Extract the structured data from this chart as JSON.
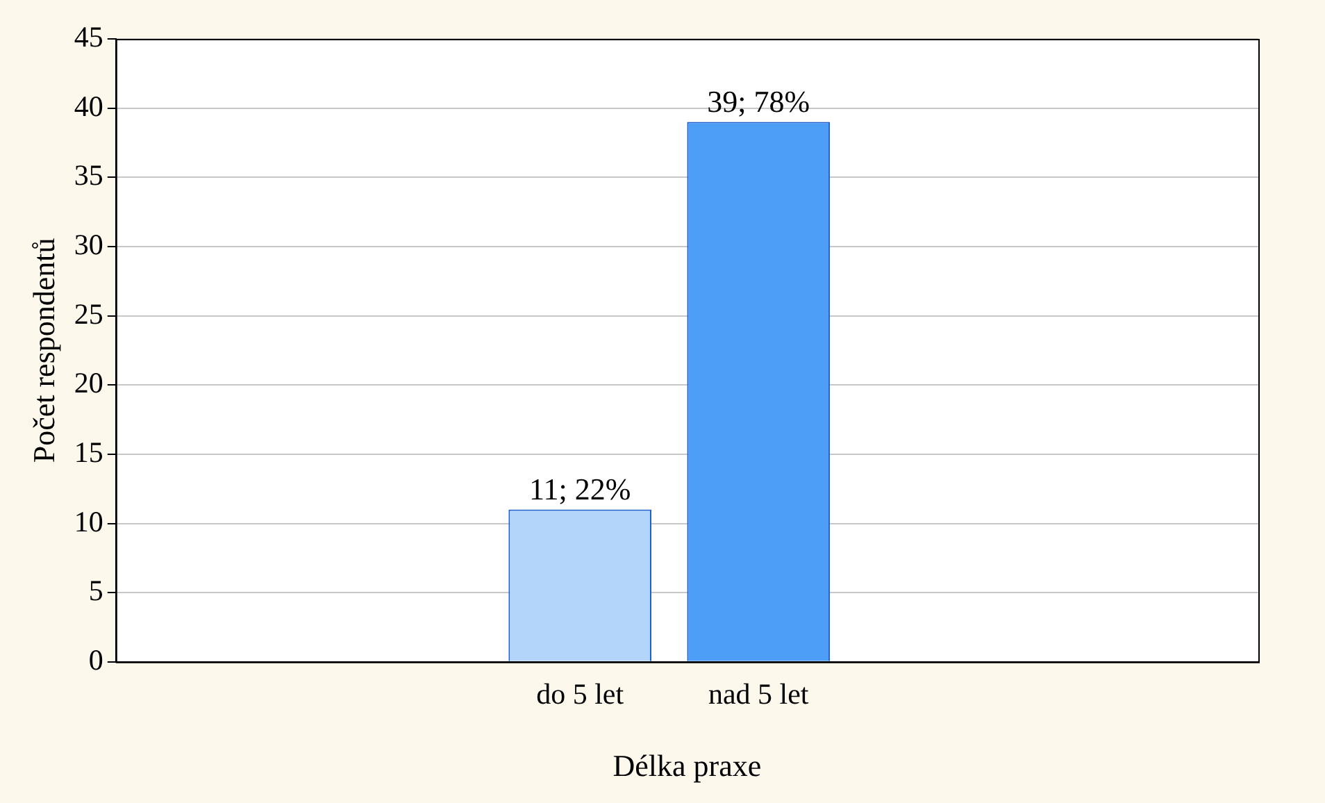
{
  "chart_data": {
    "type": "bar",
    "xlabel": "Délka praxe",
    "ylabel": "Počet respondentů",
    "categories": [
      "do 5 let",
      "nad 5 let"
    ],
    "values": [
      11,
      39
    ],
    "colors": [
      "#b3d5fa",
      "#4d9ef6"
    ],
    "value_labels": [
      "11; 22%",
      "39; 78%"
    ],
    "ylim": [
      0,
      45
    ],
    "yticks": [
      0,
      5,
      10,
      15,
      20,
      25,
      30,
      35,
      40,
      45
    ],
    "grid": "y",
    "legend": false
  }
}
